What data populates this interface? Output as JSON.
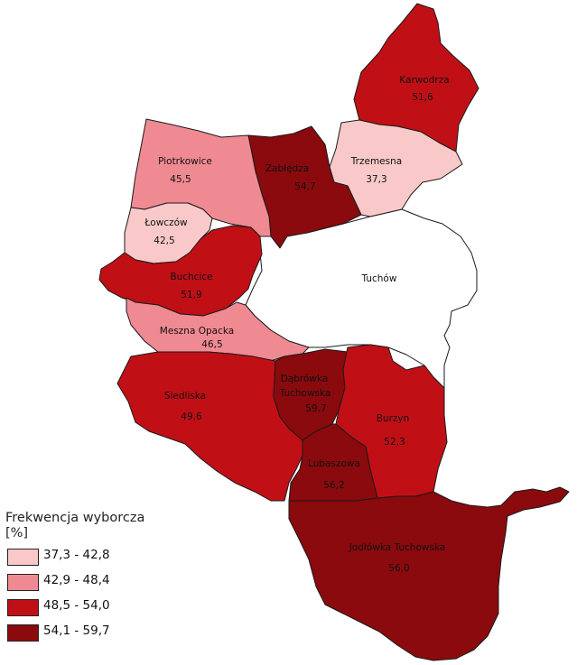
{
  "legend": {
    "title_line1": "Frekwencja wyborcza",
    "title_line2": "[%]",
    "classes": [
      {
        "range": "37,3 - 42,8",
        "color": "#f9c9c9"
      },
      {
        "range": "42,9 - 48,4",
        "color": "#f08a92"
      },
      {
        "range": "48,5 - 54,0",
        "color": "#c10f16"
      },
      {
        "range": "54,1 - 59,7",
        "color": "#8a0a0e"
      }
    ]
  },
  "regions": [
    {
      "name": "Karwodrza",
      "value": "51,6"
    },
    {
      "name": "Piotrkowice",
      "value": "45,5"
    },
    {
      "name": "Zabłędza",
      "value": "54,7"
    },
    {
      "name": "Trzemesna",
      "value": "37,3"
    },
    {
      "name": "Łowczów",
      "value": "42,5"
    },
    {
      "name": "Tuchów",
      "value": ""
    },
    {
      "name": "Buchcice",
      "value": "51,9"
    },
    {
      "name": "Meszna Opacka",
      "value": "46,5"
    },
    {
      "name": "Siedliska",
      "value": "49,6"
    },
    {
      "name": "Dąbrówka Tuchowska",
      "value": "59,7"
    },
    {
      "name": "Burzyn",
      "value": "52,3"
    },
    {
      "name": "Lubaszowa",
      "value": "56,2"
    },
    {
      "name": "Jodłówka Tuchowska",
      "value": "56,0"
    }
  ]
}
